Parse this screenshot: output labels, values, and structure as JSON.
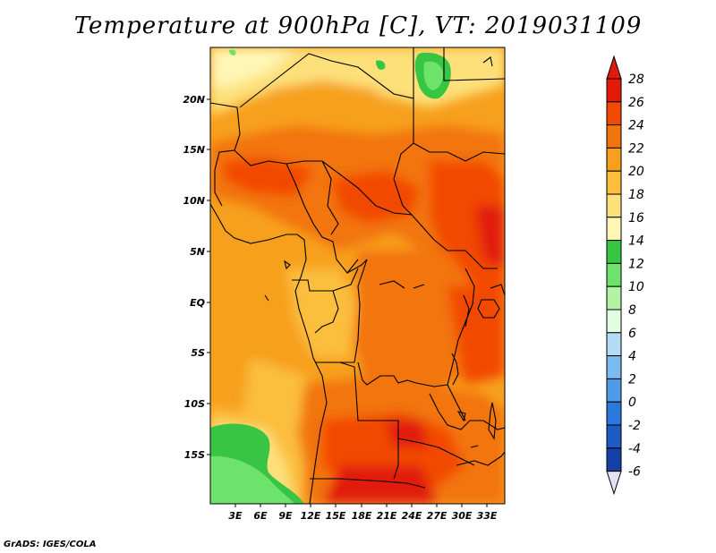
{
  "title": "Temperature at 900hPa [C], VT: 2019031109",
  "footer": "GrADS: IGES/COLA",
  "map": {
    "lon_labels": [
      "3E",
      "6E",
      "9E",
      "12E",
      "15E",
      "18E",
      "21E",
      "24E",
      "27E",
      "30E",
      "33E"
    ],
    "lat_labels": [
      "20N",
      "15N",
      "10N",
      "5N",
      "EQ",
      "5S",
      "10S",
      "15S"
    ]
  },
  "colorbar": {
    "labels": [
      "28",
      "26",
      "24",
      "22",
      "20",
      "18",
      "16",
      "14",
      "12",
      "10",
      "8",
      "6",
      "4",
      "2",
      "0",
      "-2",
      "-4",
      "-6"
    ],
    "colors": [
      "#e11a0a",
      "#f24a00",
      "#f2740d",
      "#f7a01e",
      "#fbbe3e",
      "#fde07a",
      "#fff6b5",
      "#37c543",
      "#6de36b",
      "#b2f2a3",
      "#e3fde2",
      "#b5dcf5",
      "#7cbbf2",
      "#4f9ae9",
      "#2c79dd",
      "#1c5cc4",
      "#1540a8",
      "#0c1a78"
    ],
    "over_color": "#e11a0a",
    "under_color": "#e2e2f5"
  }
}
